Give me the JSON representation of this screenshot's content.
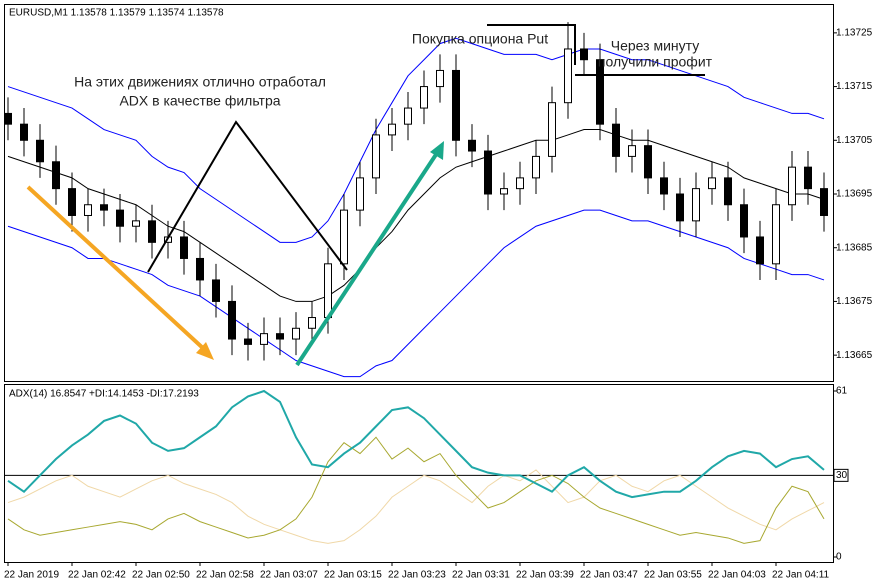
{
  "chart_data": [
    {
      "type": "candlestick",
      "title": "EURUSD,M1  1.13578 1.13579 1.13574 1.13578",
      "annotations": [
        [
          "На этих движениях отлично отработал",
          "ADX в качестве фильтра"
        ],
        [
          "Покупка опциона Put"
        ],
        [
          "Через минуту",
          "получили профит"
        ]
      ],
      "up_color": "#ffffff",
      "down_color": "#000000",
      "open": [
        1.1371,
        1.13708,
        1.13705,
        1.13701,
        1.13696,
        1.13691,
        1.13693,
        1.13692,
        1.13689,
        1.1369,
        1.13686,
        1.13687,
        1.13683,
        1.13679,
        1.13675,
        1.13668,
        1.13667,
        1.13669,
        1.13668,
        1.1367,
        1.13672,
        1.13682,
        1.13692,
        1.13698,
        1.13706,
        1.13708,
        1.13711,
        1.13715,
        1.13718,
        1.13705,
        1.13703,
        1.13695,
        1.13696,
        1.13698,
        1.13702,
        1.13712,
        1.13722,
        1.1372,
        1.13708,
        1.13702,
        1.13704,
        1.13698,
        1.13695,
        1.1369,
        1.13696,
        1.13698,
        1.13693,
        1.13687,
        1.13682,
        1.13693,
        1.137,
        1.13696
      ],
      "high": [
        1.13713,
        1.13711,
        1.13708,
        1.13704,
        1.13699,
        1.13696,
        1.13696,
        1.13695,
        1.13693,
        1.13693,
        1.1369,
        1.1369,
        1.13686,
        1.13682,
        1.13678,
        1.13671,
        1.13672,
        1.13672,
        1.13673,
        1.13675,
        1.13685,
        1.13695,
        1.13701,
        1.13709,
        1.13711,
        1.13714,
        1.13718,
        1.13721,
        1.13721,
        1.13708,
        1.13706,
        1.13699,
        1.13701,
        1.13705,
        1.13715,
        1.13727,
        1.13725,
        1.13723,
        1.13711,
        1.13707,
        1.13707,
        1.13701,
        1.13698,
        1.13699,
        1.13701,
        1.13701,
        1.13696,
        1.1369,
        1.13696,
        1.13703,
        1.13703,
        1.13699
      ],
      "low": [
        1.13705,
        1.13702,
        1.13698,
        1.13693,
        1.13688,
        1.13688,
        1.13689,
        1.13686,
        1.13686,
        1.13683,
        1.13683,
        1.1368,
        1.13676,
        1.13672,
        1.13665,
        1.13664,
        1.13664,
        1.13665,
        1.13665,
        1.13667,
        1.13669,
        1.13679,
        1.13689,
        1.13695,
        1.13703,
        1.13705,
        1.13708,
        1.13712,
        1.13702,
        1.137,
        1.13692,
        1.13692,
        1.13693,
        1.13695,
        1.13699,
        1.13709,
        1.13717,
        1.13705,
        1.13699,
        1.13699,
        1.13695,
        1.13692,
        1.13687,
        1.13687,
        1.13693,
        1.1369,
        1.13684,
        1.13679,
        1.13679,
        1.1369,
        1.13693,
        1.13688
      ],
      "close": [
        1.13708,
        1.13705,
        1.13701,
        1.13696,
        1.13691,
        1.13693,
        1.13692,
        1.13689,
        1.1369,
        1.13686,
        1.13687,
        1.13683,
        1.13679,
        1.13675,
        1.13668,
        1.13667,
        1.13669,
        1.13668,
        1.1367,
        1.13672,
        1.13682,
        1.13692,
        1.13698,
        1.13706,
        1.13708,
        1.13711,
        1.13715,
        1.13718,
        1.13705,
        1.13703,
        1.13695,
        1.13696,
        1.13698,
        1.13702,
        1.13712,
        1.13722,
        1.1372,
        1.13708,
        1.13702,
        1.13704,
        1.13698,
        1.13695,
        1.1369,
        1.13696,
        1.13698,
        1.13693,
        1.13687,
        1.13682,
        1.13693,
        1.137,
        1.13696,
        1.13691
      ],
      "series": [
        {
          "color": "#0000ff",
          "values": [
            1.13715,
            1.13714,
            1.13713,
            1.13712,
            1.13711,
            1.13709,
            1.13707,
            1.13706,
            1.13705,
            1.13702,
            1.137,
            1.13699,
            1.13696,
            1.13694,
            1.13692,
            1.1369,
            1.13688,
            1.13686,
            1.13686,
            1.13687,
            1.1369,
            1.13695,
            1.13701,
            1.13707,
            1.13712,
            1.13717,
            1.1372,
            1.13723,
            1.13724,
            1.13723,
            1.13722,
            1.13721,
            1.13721,
            1.13721,
            1.1372,
            1.13721,
            1.13722,
            1.13722,
            1.13721,
            1.1372,
            1.1372,
            1.13719,
            1.13718,
            1.13717,
            1.13716,
            1.13715,
            1.13713,
            1.13712,
            1.13711,
            1.1371,
            1.1371,
            1.13709
          ]
        },
        {
          "color": "#000000",
          "values": [
            1.13702,
            1.13701,
            1.137,
            1.13699,
            1.13698,
            1.13696,
            1.13695,
            1.13694,
            1.13693,
            1.13691,
            1.13689,
            1.13688,
            1.13686,
            1.13684,
            1.13682,
            1.1368,
            1.13678,
            1.13676,
            1.13675,
            1.13675,
            1.13676,
            1.13678,
            1.13681,
            1.13685,
            1.13688,
            1.13692,
            1.13695,
            1.13698,
            1.137,
            1.13701,
            1.13702,
            1.13703,
            1.13704,
            1.13705,
            1.13705,
            1.13706,
            1.13707,
            1.13707,
            1.13706,
            1.13705,
            1.13705,
            1.13704,
            1.13703,
            1.13702,
            1.13701,
            1.137,
            1.13698,
            1.13697,
            1.13696,
            1.13695,
            1.13695,
            1.13694
          ]
        },
        {
          "color": "#0000ff",
          "values": [
            1.13689,
            1.13688,
            1.13687,
            1.13686,
            1.13685,
            1.13683,
            1.13683,
            1.13682,
            1.13681,
            1.1368,
            1.13678,
            1.13677,
            1.13676,
            1.13674,
            1.13672,
            1.1367,
            1.13668,
            1.13666,
            1.13664,
            1.13663,
            1.13662,
            1.13661,
            1.13661,
            1.13663,
            1.13664,
            1.13667,
            1.1367,
            1.13673,
            1.13676,
            1.13679,
            1.13682,
            1.13685,
            1.13687,
            1.13689,
            1.1369,
            1.13691,
            1.13692,
            1.13692,
            1.13691,
            1.1369,
            1.1369,
            1.13689,
            1.13688,
            1.13687,
            1.13686,
            1.13685,
            1.13683,
            1.13682,
            1.13681,
            1.1368,
            1.1368,
            1.13679
          ]
        }
      ],
      "ylim": [
        1.1366,
        1.1373
      ],
      "yticks": [
        1.13665,
        1.13675,
        1.13685,
        1.13695,
        1.13705,
        1.13715,
        1.13725
      ]
    },
    {
      "type": "line",
      "title": "ADX(14) 16.8547 +DI:14.1453 -DI:17.2193",
      "categories": [
        "22 Jan 2019",
        null,
        null,
        null,
        "22 Jan 02:42",
        null,
        null,
        null,
        "22 Jan 02:50",
        null,
        null,
        null,
        "22 Jan 02:58",
        null,
        null,
        null,
        "22 Jan 03:07",
        null,
        null,
        null,
        "22 Jan 03:15",
        null,
        null,
        null,
        "22 Jan 03:23",
        null,
        null,
        null,
        "22 Jan 03:31",
        null,
        null,
        null,
        "22 Jan 03:39",
        null,
        null,
        null,
        "22 Jan 03:47",
        null,
        null,
        null,
        "22 Jan 03:55",
        null,
        null,
        null,
        "22 Jan 04:03",
        null,
        null,
        null,
        "22 Jan 04:11",
        null,
        null,
        null
      ],
      "series": [
        {
          "color": "#f0d8a8",
          "values": [
            20,
            22,
            25,
            28,
            30,
            26,
            24,
            22,
            25,
            28,
            30,
            27,
            25,
            23,
            20,
            15,
            12,
            10,
            8,
            6,
            5,
            6,
            10,
            15,
            22,
            26,
            30,
            28,
            24,
            20,
            26,
            30,
            28,
            32,
            26,
            20,
            22,
            28,
            30,
            26,
            24,
            28,
            30,
            26,
            22,
            18,
            15,
            12,
            10,
            14,
            17,
            20
          ]
        },
        {
          "color": "#a8a830",
          "values": [
            14,
            10,
            8,
            9,
            10,
            11,
            12,
            13,
            12,
            10,
            14,
            16,
            13,
            11,
            9,
            7,
            8,
            10,
            14,
            22,
            35,
            42,
            38,
            44,
            36,
            40,
            35,
            38,
            30,
            24,
            18,
            20,
            24,
            28,
            30,
            27,
            22,
            18,
            16,
            14,
            12,
            10,
            8,
            9,
            8,
            7,
            5,
            6,
            18,
            26,
            24,
            14
          ]
        },
        {
          "color": "#20a8a8",
          "values": [
            28,
            24,
            30,
            36,
            41,
            45,
            50,
            52,
            49,
            42,
            39,
            40,
            44,
            48,
            55,
            59,
            61,
            57,
            44,
            34,
            33,
            38,
            42,
            48,
            54,
            55,
            51,
            45,
            39,
            33,
            31,
            30,
            30,
            27,
            24,
            30,
            33,
            28,
            24,
            22,
            23,
            24,
            24,
            28,
            33,
            37,
            39,
            38,
            33,
            36,
            37,
            32
          ]
        }
      ],
      "ylim": [
        0,
        61
      ],
      "yticks": [
        0,
        30,
        61
      ]
    }
  ]
}
